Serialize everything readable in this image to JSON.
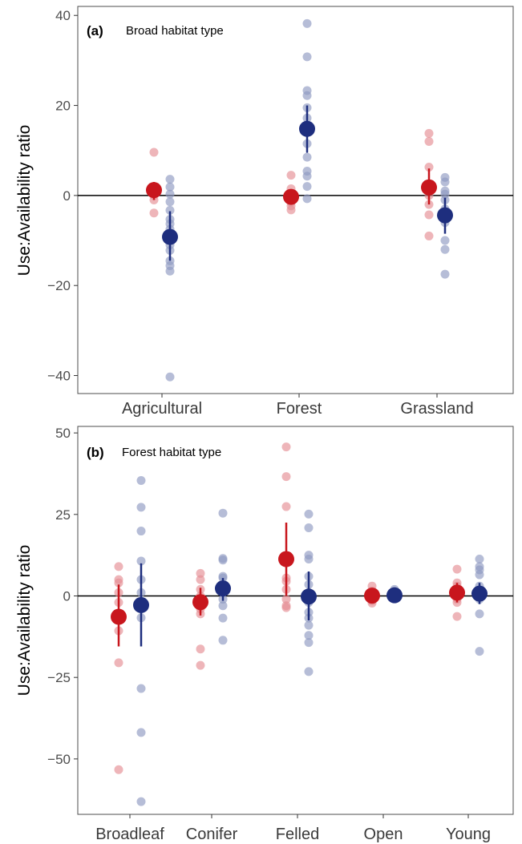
{
  "colors": {
    "red": "#c8161d",
    "blue": "#1e2e7e",
    "red_light": "#e58d94",
    "blue_light": "#8f9ac2"
  },
  "chart_data": [
    {
      "type": "scatter",
      "panel_tag": "(a)",
      "title": "Broad habitat type",
      "ylabel": "Use:Availability ratio",
      "ylim": [
        -44,
        42
      ],
      "yticks": [
        40,
        20,
        0,
        -20,
        -40
      ],
      "ytick_labels": [
        "40",
        "20",
        "0",
        "−20",
        "−40"
      ],
      "categories": [
        "Agricultural",
        "Forest",
        "Grassland"
      ],
      "reference_line": 0,
      "series": [
        {
          "color": "red",
          "means": [
            1.2,
            -0.3,
            1.8
          ],
          "ci": [
            [
              -1,
              3
            ],
            [
              -1.5,
              1.2
            ],
            [
              -2,
              6
            ]
          ],
          "points": [
            [
              9.6,
              2,
              1,
              0,
              -1,
              -3.9
            ],
            [
              4.5,
              1.5,
              0.5,
              -0.5,
              -1.5,
              -2.3,
              -3.2
            ],
            [
              13.8,
              12,
              6.3,
              2,
              0,
              -2,
              -4.3,
              -9
            ]
          ]
        },
        {
          "color": "blue",
          "means": [
            -9.2,
            14.8,
            -4.4
          ],
          "ci": [
            [
              -14.5,
              -3.5
            ],
            [
              9.5,
              20
            ],
            [
              -8.5,
              -0.5
            ]
          ],
          "points": [
            [
              3.6,
              1.9,
              0.3,
              -1.4,
              -3.3,
              -5.3,
              -6.3,
              -7.5,
              -9.7,
              -11,
              -12.2,
              -14.5,
              -15.6,
              -16.8,
              -40.3
            ],
            [
              38.2,
              30.8,
              23.3,
              22.2,
              19.5,
              17.2,
              14.2,
              11.5,
              8.5,
              5.4,
              4.3,
              2,
              -0.7
            ],
            [
              4,
              3,
              1,
              0.3,
              -1,
              -3,
              -6,
              -10,
              -12,
              -17.5
            ]
          ]
        }
      ]
    },
    {
      "type": "scatter",
      "panel_tag": "(b)",
      "title": "Forest habitat type",
      "ylabel": "Use:Availability ratio",
      "ylim": [
        -67,
        52
      ],
      "yticks": [
        50,
        25,
        0,
        -25,
        -50
      ],
      "ytick_labels": [
        "50",
        "25",
        "0",
        "−25",
        "−50"
      ],
      "categories": [
        "Broadleaf",
        "Conifer",
        "Felled",
        "Open",
        "Young"
      ],
      "reference_line": 0,
      "series": [
        {
          "color": "red",
          "means": [
            -6.4,
            -1.9,
            11.3,
            0.1,
            1.0
          ],
          "ci": [
            [
              -15.5,
              3.5
            ],
            [
              -6,
              2.5
            ],
            [
              0,
              22.5
            ],
            [
              -1,
              1
            ],
            [
              -2,
              4
            ]
          ],
          "points": [
            [
              9,
              5,
              4,
              1,
              -2,
              -6,
              -10.7,
              -20.5,
              -53.3
            ],
            [
              6.9,
              5,
              2,
              0,
              -2,
              -4,
              -5.5,
              -16.3,
              -21.3
            ],
            [
              45.7,
              36.6,
              27.4,
              5.5,
              4.5,
              2,
              -1,
              -3,
              -3.6
            ],
            [
              3,
              1.5,
              0.5,
              -0.5,
              -1.5,
              -2.2
            ],
            [
              8.2,
              4,
              3,
              1.5,
              0,
              -1,
              -2,
              -6.3
            ]
          ]
        },
        {
          "color": "blue",
          "means": [
            -2.8,
            2.3,
            -0.2,
            0.2,
            0.7
          ],
          "ci": [
            [
              -15.5,
              10
            ],
            [
              -1.5,
              5.5
            ],
            [
              -7.5,
              7.5
            ],
            [
              -0.8,
              1.5
            ],
            [
              -2.5,
              4
            ]
          ],
          "points": [
            [
              35.4,
              27.2,
              19.9,
              10.7,
              5,
              1,
              -2,
              -3.5,
              -6.7,
              -28.4,
              -41.9,
              -63.1
            ],
            [
              25.4,
              11.5,
              11,
              6,
              5.5,
              3,
              1,
              -1,
              -3,
              -6.8,
              -13.6
            ],
            [
              25.1,
              20.9,
              12.5,
              11.3,
              6,
              3.5,
              1,
              -2,
              -5,
              -6.8,
              -9,
              -12.1,
              -14.3,
              -23.2
            ],
            [
              2,
              1,
              0.3,
              -0.5
            ],
            [
              11.3,
              9,
              8,
              6.5,
              3,
              1,
              -1,
              -5.5,
              -17
            ]
          ]
        }
      ]
    }
  ]
}
